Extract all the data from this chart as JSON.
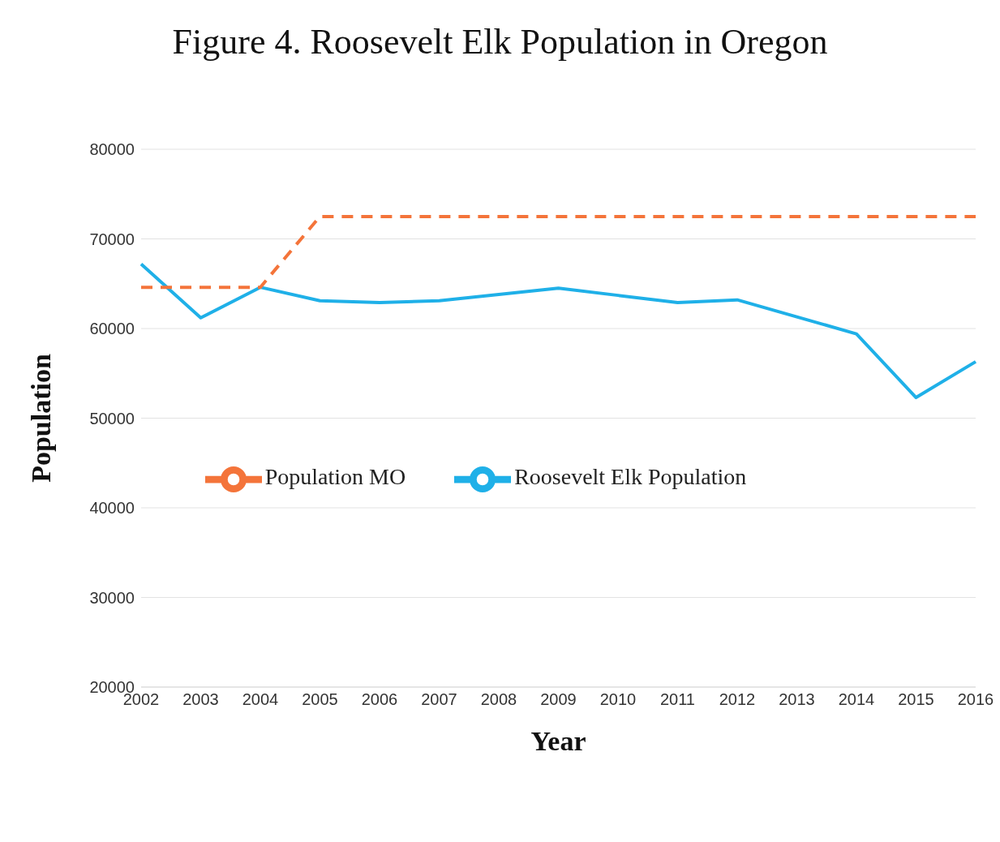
{
  "chart_data": {
    "type": "line",
    "title": "Figure 4. Roosevelt Elk Population in Oregon",
    "xlabel": "Year",
    "ylabel": "Population",
    "categories": [
      "2002",
      "2003",
      "2004",
      "2005",
      "2006",
      "2007",
      "2008",
      "2009",
      "2010",
      "2011",
      "2012",
      "2013",
      "2014",
      "2015",
      "2016"
    ],
    "series": [
      {
        "name": "Roosevelt Elk Population",
        "color": "#1fb0e8",
        "line_style": "solid",
        "values": [
          67200,
          61200,
          64600,
          63100,
          62900,
          63100,
          63800,
          64500,
          63700,
          62900,
          63200,
          61300,
          59400,
          52300,
          56300
        ]
      },
      {
        "name": "Population MO",
        "color": "#f4743a",
        "line_style": "dashed",
        "values": [
          64600,
          64600,
          64600,
          72500,
          72500,
          72500,
          72500,
          72500,
          72500,
          72500,
          72500,
          72500,
          72500,
          72500,
          72500
        ]
      }
    ],
    "ylim": [
      20000,
      80000
    ],
    "yticks": [
      20000,
      30000,
      40000,
      50000,
      60000,
      70000,
      80000
    ],
    "grid": "y",
    "legend": "center",
    "marker": "none"
  }
}
